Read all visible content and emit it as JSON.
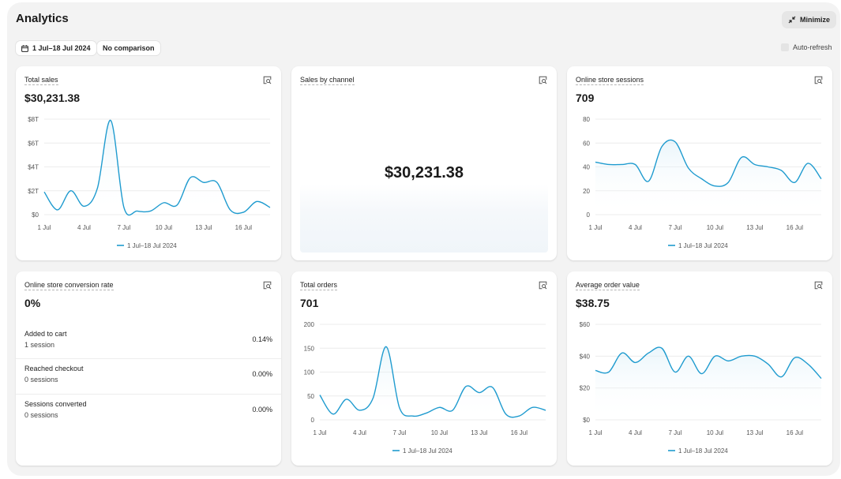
{
  "page": {
    "title": "Analytics",
    "minimize_label": "Minimize",
    "date_range_label": "1 Jul–18 Jul 2024",
    "comparison_label": "No comparison",
    "auto_refresh_label": "Auto-refresh"
  },
  "colors": {
    "accent": "#1f9bcf",
    "grid": "#ececec",
    "card": "#ffffff",
    "background": "#f3f3f3"
  },
  "cards": {
    "total_sales": {
      "title": "Total sales",
      "value": "$30,231.38"
    },
    "sales_by_channel": {
      "title": "Sales by channel",
      "value": "$30,231.38"
    },
    "online_store_sessions": {
      "title": "Online store sessions",
      "value": "709"
    },
    "conversion_rate": {
      "title": "Online store conversion rate",
      "value": "0%",
      "rows": [
        {
          "label": "Added to cart",
          "sub": "1 session",
          "pct": "0.14%"
        },
        {
          "label": "Reached checkout",
          "sub": "0 sessions",
          "pct": "0.00%"
        },
        {
          "label": "Sessions converted",
          "sub": "0 sessions",
          "pct": "0.00%"
        }
      ]
    },
    "total_orders": {
      "title": "Total orders",
      "value": "701"
    },
    "average_order_value": {
      "title": "Average order value",
      "value": "$38.75"
    }
  },
  "chart_data": [
    {
      "id": "total_sales",
      "type": "line",
      "title": "Total sales",
      "x": [
        "1 Jul",
        "2 Jul",
        "3 Jul",
        "4 Jul",
        "5 Jul",
        "6 Jul",
        "7 Jul",
        "8 Jul",
        "9 Jul",
        "10 Jul",
        "11 Jul",
        "12 Jul",
        "13 Jul",
        "14 Jul",
        "15 Jul",
        "16 Jul",
        "17 Jul",
        "18 Jul"
      ],
      "x_ticks": [
        "1 Jul",
        "4 Jul",
        "7 Jul",
        "10 Jul",
        "13 Jul",
        "16 Jul"
      ],
      "y_ticks": [
        "$0",
        "$2T",
        "$4T",
        "$6T",
        "$8T"
      ],
      "ylim": [
        0,
        8
      ],
      "series": [
        {
          "name": "1 Jul–18 Jul 2024",
          "values": [
            1.9,
            0.4,
            2.0,
            0.7,
            2.2,
            7.9,
            0.6,
            0.3,
            0.3,
            1.0,
            0.8,
            3.1,
            2.7,
            2.7,
            0.4,
            0.2,
            1.1,
            0.6
          ]
        }
      ],
      "legend": "1 Jul–18 Jul 2024"
    },
    {
      "id": "online_store_sessions",
      "type": "line",
      "title": "Online store sessions",
      "x": [
        "1 Jul",
        "2 Jul",
        "3 Jul",
        "4 Jul",
        "5 Jul",
        "6 Jul",
        "7 Jul",
        "8 Jul",
        "9 Jul",
        "10 Jul",
        "11 Jul",
        "12 Jul",
        "13 Jul",
        "14 Jul",
        "15 Jul",
        "16 Jul",
        "17 Jul",
        "18 Jul"
      ],
      "x_ticks": [
        "1 Jul",
        "4 Jul",
        "7 Jul",
        "10 Jul",
        "13 Jul",
        "16 Jul"
      ],
      "y_ticks": [
        "0",
        "20",
        "40",
        "60",
        "80"
      ],
      "ylim": [
        0,
        80
      ],
      "series": [
        {
          "name": "1 Jul–18 Jul 2024",
          "values": [
            44,
            42,
            42,
            42,
            28,
            57,
            61,
            39,
            30,
            24,
            27,
            48,
            42,
            40,
            37,
            27,
            43,
            30
          ]
        }
      ],
      "legend": "1 Jul–18 Jul 2024"
    },
    {
      "id": "total_orders",
      "type": "line",
      "title": "Total orders",
      "x": [
        "1 Jul",
        "2 Jul",
        "3 Jul",
        "4 Jul",
        "5 Jul",
        "6 Jul",
        "7 Jul",
        "8 Jul",
        "9 Jul",
        "10 Jul",
        "11 Jul",
        "12 Jul",
        "13 Jul",
        "14 Jul",
        "15 Jul",
        "16 Jul",
        "17 Jul",
        "18 Jul"
      ],
      "x_ticks": [
        "1 Jul",
        "4 Jul",
        "7 Jul",
        "10 Jul",
        "13 Jul",
        "16 Jul"
      ],
      "y_ticks": [
        "0",
        "50",
        "100",
        "150",
        "200"
      ],
      "ylim": [
        0,
        200
      ],
      "series": [
        {
          "name": "1 Jul–18 Jul 2024",
          "values": [
            52,
            12,
            43,
            20,
            45,
            153,
            25,
            8,
            14,
            26,
            20,
            70,
            57,
            68,
            12,
            8,
            26,
            20
          ]
        }
      ],
      "legend": "1 Jul–18 Jul 2024"
    },
    {
      "id": "average_order_value",
      "type": "line",
      "title": "Average order value",
      "x": [
        "1 Jul",
        "2 Jul",
        "3 Jul",
        "4 Jul",
        "5 Jul",
        "6 Jul",
        "7 Jul",
        "8 Jul",
        "9 Jul",
        "10 Jul",
        "11 Jul",
        "12 Jul",
        "13 Jul",
        "14 Jul",
        "15 Jul",
        "16 Jul",
        "17 Jul",
        "18 Jul"
      ],
      "x_ticks": [
        "1 Jul",
        "4 Jul",
        "7 Jul",
        "10 Jul",
        "13 Jul",
        "16 Jul"
      ],
      "y_ticks": [
        "$0",
        "$20",
        "$40",
        "$60"
      ],
      "ylim": [
        0,
        60
      ],
      "series": [
        {
          "name": "1 Jul–18 Jul 2024",
          "values": [
            31,
            30,
            42,
            36,
            42,
            45,
            30,
            40,
            29,
            40,
            37,
            40,
            40,
            35,
            27,
            39,
            35,
            26
          ]
        }
      ],
      "legend": "1 Jul–18 Jul 2024"
    }
  ]
}
